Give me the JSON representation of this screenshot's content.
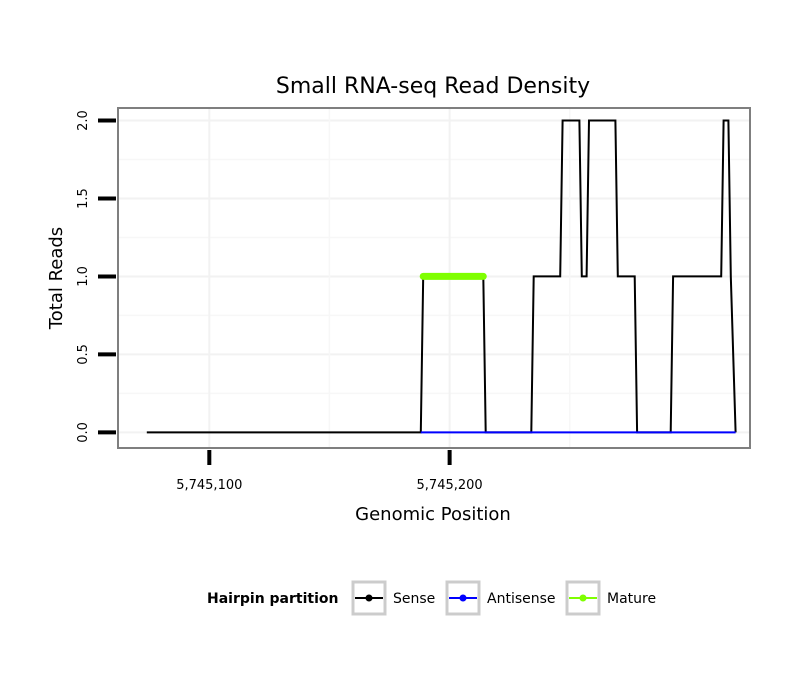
{
  "chart_data": {
    "type": "line",
    "title": "Small RNA-seq Read Density",
    "xlabel": "Genomic Position",
    "ylabel": "Total Reads",
    "xlim": [
      5745062,
      5745325
    ],
    "ylim": [
      -0.1,
      2.08
    ],
    "x_ticks": [
      {
        "value": 5745100,
        "label": "5,745,100"
      },
      {
        "value": 5745200,
        "label": "5,745,200"
      }
    ],
    "y_ticks": [
      {
        "value": 0.0,
        "label": "0.0"
      },
      {
        "value": 0.5,
        "label": "0.5"
      },
      {
        "value": 1.0,
        "label": "1.0"
      },
      {
        "value": 1.5,
        "label": "1.5"
      },
      {
        "value": 2.0,
        "label": "2.0"
      }
    ],
    "grid": true,
    "legend": {
      "title": "Hairpin partition",
      "position": "bottom",
      "entries": [
        {
          "name": "Sense",
          "color": "#000000"
        },
        {
          "name": "Antisense",
          "color": "#0000ff"
        },
        {
          "name": "Mature",
          "color": "#7fff00"
        }
      ]
    },
    "series": [
      {
        "name": "Sense",
        "color": "#000000",
        "x": [
          5745074,
          5745188,
          5745189,
          5745214,
          5745215,
          5745234,
          5745235,
          5745246,
          5745247,
          5745254,
          5745255,
          5745257,
          5745258,
          5745269,
          5745270,
          5745277,
          5745278,
          5745292,
          5745293,
          5745313,
          5745314,
          5745316,
          5745317,
          5745319
        ],
        "y": [
          0,
          0,
          1,
          1,
          0,
          0,
          1,
          1,
          2,
          2,
          1,
          1,
          2,
          2,
          1,
          1,
          0,
          0,
          1,
          1,
          2,
          2,
          1,
          0
        ]
      },
      {
        "name": "Antisense",
        "color": "#0000ff",
        "x": [
          5745188,
          5745216,
          5745293,
          5745319
        ],
        "y": [
          0,
          0,
          0,
          0
        ]
      },
      {
        "name": "Mature",
        "color": "#7fff00",
        "x": [
          5745189,
          5745214
        ],
        "y": [
          1,
          1
        ]
      }
    ]
  }
}
